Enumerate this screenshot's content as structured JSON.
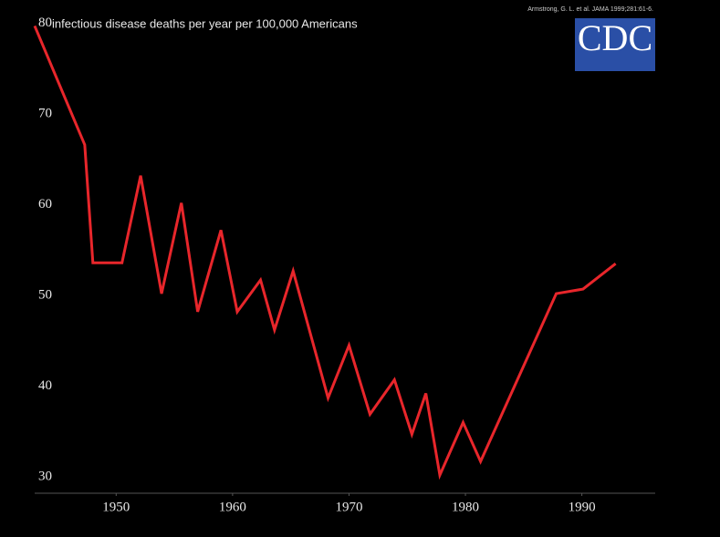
{
  "chart_data": {
    "type": "line",
    "title": "infectious disease deaths per year per 100,000 Americans",
    "source": "Armstrong, G. L. et al. JAMA 1999;281:61-6.",
    "logo": "CDC",
    "x": [
      1943,
      1947.3,
      1948,
      1950.5,
      1952.1,
      1953.9,
      1955.6,
      1957,
      1959,
      1960.4,
      1962.4,
      1963.6,
      1965.2,
      1968.2,
      1970,
      1971.8,
      1973.9,
      1975.4,
      1976.6,
      1977.8,
      1979.8,
      1981.3,
      1987.8,
      1990.1,
      1992.9
    ],
    "series": [
      {
        "name": "deaths",
        "color": "#e8262b",
        "values": [
          79.5,
          66.4,
          53.4,
          53.4,
          63,
          50,
          60,
          48,
          57,
          48,
          51.5,
          46,
          52.5,
          38.5,
          44.3,
          36.7,
          40.5,
          34.5,
          39,
          30,
          35.8,
          31.5,
          50,
          50.5,
          53.3
        ]
      }
    ],
    "xlim": [
      1943,
      1996.3
    ],
    "ylim": [
      28,
      80
    ],
    "xticks": [
      1950,
      1960,
      1970,
      1980,
      1990
    ],
    "yticks": [
      30,
      40,
      50,
      60,
      70,
      80
    ],
    "grid": false
  }
}
